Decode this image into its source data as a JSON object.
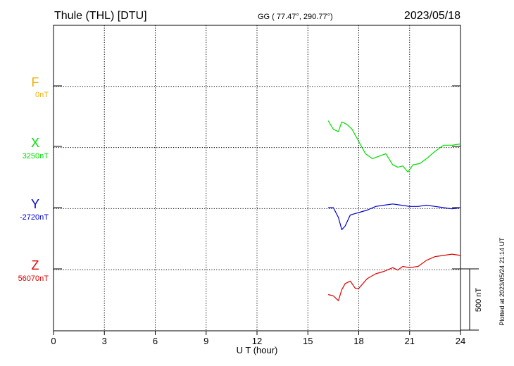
{
  "header": {
    "station": "Thule (THL)  [DTU]",
    "coords": "GG ( 77.47°, 290.77°)",
    "date": "2023/05/18"
  },
  "footer": {
    "plotted": "Plotted at 2023/05/24 21:14 UT"
  },
  "chart_data": {
    "type": "line",
    "title": "",
    "xlabel": "U T (hour)",
    "ylabel": "",
    "xlim": [
      0,
      24
    ],
    "xticks": [
      0,
      3,
      6,
      9,
      12,
      15,
      18,
      21,
      24
    ],
    "grid": true,
    "scale_bar": {
      "label": "500 nT",
      "value_nT": 500
    },
    "series": [
      {
        "name": "F",
        "baseline_label": "0nT",
        "color": "#f0b000",
        "x": [],
        "values": []
      },
      {
        "name": "X",
        "baseline_label": "3250nT",
        "color": "#00dd00",
        "x": [
          16.2,
          16.5,
          16.8,
          17.0,
          17.3,
          17.6,
          18.0,
          18.4,
          18.8,
          19.2,
          19.6,
          20.0,
          20.3,
          20.6,
          20.9,
          21.2,
          21.6,
          22.0,
          22.5,
          23.0,
          23.5,
          24.0
        ],
        "values": [
          210,
          140,
          120,
          200,
          180,
          140,
          40,
          -60,
          -100,
          -80,
          -60,
          -150,
          -170,
          -160,
          -210,
          -150,
          -140,
          -100,
          -40,
          10,
          10,
          20
        ]
      },
      {
        "name": "Y",
        "baseline_label": "-2720nT",
        "color": "#0000cc",
        "x": [
          16.2,
          16.5,
          16.8,
          17.0,
          17.2,
          17.5,
          18.0,
          18.5,
          19.0,
          19.5,
          20.0,
          20.5,
          21.0,
          21.5,
          22.0,
          22.5,
          23.0,
          23.5,
          24.0
        ],
        "values": [
          0,
          0,
          -80,
          -180,
          -150,
          -60,
          -40,
          -20,
          10,
          20,
          30,
          20,
          10,
          10,
          20,
          10,
          0,
          -10,
          0
        ]
      },
      {
        "name": "Z",
        "baseline_label": "56070nT",
        "color": "#dd0000",
        "x": [
          16.2,
          16.5,
          16.8,
          17.0,
          17.2,
          17.5,
          17.8,
          18.0,
          18.5,
          19.0,
          19.5,
          20.0,
          20.3,
          20.6,
          21.0,
          21.5,
          22.0,
          22.5,
          23.0,
          23.5,
          24.0
        ],
        "values": [
          -210,
          -220,
          -260,
          -170,
          -120,
          -100,
          -160,
          -160,
          -80,
          -40,
          -20,
          10,
          -10,
          20,
          10,
          20,
          70,
          100,
          110,
          120,
          110
        ]
      }
    ]
  }
}
